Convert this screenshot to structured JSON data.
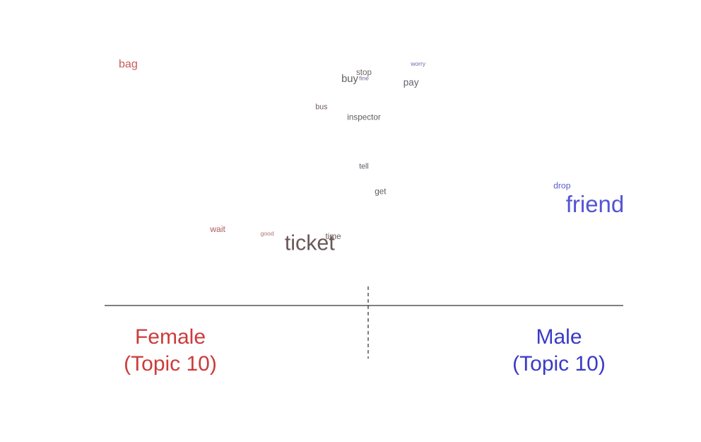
{
  "chart_data": {
    "type": "scatter",
    "colors": {
      "female": "#cc3b3b",
      "male": "#3a3ac8",
      "axis": "#000000"
    },
    "groups": {
      "female": {
        "label_line1": "Female",
        "label_line2": "(Topic 10)"
      },
      "male": {
        "label_line1": "Male",
        "label_line2": "(Topic 10)"
      }
    },
    "words": [
      {
        "word": "bag",
        "x": -1.0,
        "y": 0.96,
        "weight": 0.35,
        "color": "#c85a5a"
      },
      {
        "word": "worry",
        "x": 0.23,
        "y": 0.97,
        "weight": 0.06,
        "color": "#6a6ab0"
      },
      {
        "word": "stop",
        "x": 0.0,
        "y": 0.92,
        "weight": 0.18,
        "color": "#6e6464"
      },
      {
        "word": "fine",
        "x": 0.0,
        "y": 0.89,
        "weight": 0.06,
        "color": "#6e6e8a"
      },
      {
        "word": "buy",
        "x": -0.06,
        "y": 0.88,
        "weight": 0.3,
        "color": "#665c5c"
      },
      {
        "word": "pay",
        "x": 0.2,
        "y": 0.86,
        "weight": 0.25,
        "color": "#666070"
      },
      {
        "word": "bus",
        "x": -0.18,
        "y": 0.73,
        "weight": 0.14,
        "color": "#6e5a5a"
      },
      {
        "word": "inspector",
        "x": 0.0,
        "y": 0.67,
        "weight": 0.18,
        "color": "#5c5c5c"
      },
      {
        "word": "tell",
        "x": 0.0,
        "y": 0.4,
        "weight": 0.14,
        "color": "#5c5c6a"
      },
      {
        "word": "get",
        "x": 0.07,
        "y": 0.26,
        "weight": 0.18,
        "color": "#5c5c5c"
      },
      {
        "word": "drop",
        "x": 0.84,
        "y": 0.29,
        "weight": 0.2,
        "color": "#5a5acc"
      },
      {
        "word": "friend",
        "x": 0.98,
        "y": 0.16,
        "weight": 1.0,
        "color": "#5454d4"
      },
      {
        "word": "wait",
        "x": -0.62,
        "y": 0.05,
        "weight": 0.2,
        "color": "#b05a5a"
      },
      {
        "word": "good",
        "x": -0.41,
        "y": 0.03,
        "weight": 0.06,
        "color": "#b07070"
      },
      {
        "word": "time",
        "x": -0.13,
        "y": 0.01,
        "weight": 0.18,
        "color": "#6a5a5a"
      },
      {
        "word": "ticket",
        "x": -0.23,
        "y": -0.05,
        "weight": 0.9,
        "color": "#6a5858"
      }
    ],
    "xlim": [
      -1.1,
      1.1
    ],
    "ylim": [
      -0.35,
      1.1
    ]
  }
}
